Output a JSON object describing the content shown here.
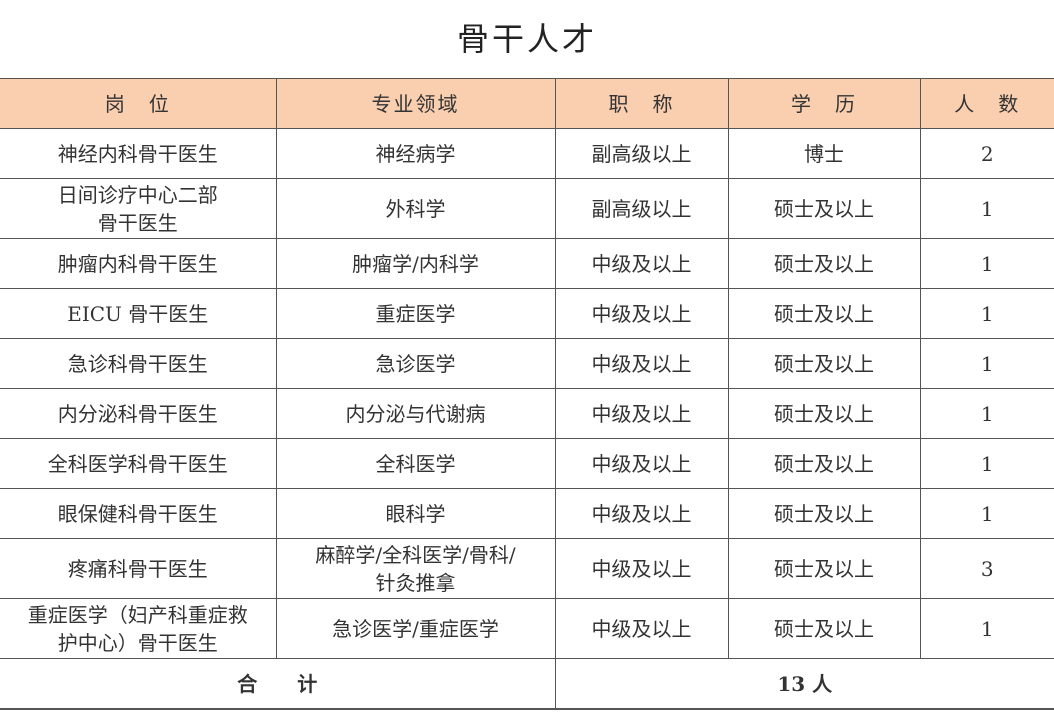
{
  "title": "骨干人才",
  "headers": [
    "岗　位",
    "专业领域",
    "职　称",
    "学　历",
    "人　数"
  ],
  "rows": [
    [
      "神经内科骨干医生",
      "神经病学",
      "副高级以上",
      "博士",
      "2"
    ],
    [
      "日间诊疗中心二部\n骨干医生",
      "外科学",
      "副高级以上",
      "硕士及以上",
      "1"
    ],
    [
      "肿瘤内科骨干医生",
      "肿瘤学/内科学",
      "中级及以上",
      "硕士及以上",
      "1"
    ],
    [
      "EICU 骨干医生",
      "重症医学",
      "中级及以上",
      "硕士及以上",
      "1"
    ],
    [
      "急诊科骨干医生",
      "急诊医学",
      "中级及以上",
      "硕士及以上",
      "1"
    ],
    [
      "内分泌科骨干医生",
      "内分泌与代谢病",
      "中级及以上",
      "硕士及以上",
      "1"
    ],
    [
      "全科医学科骨干医生",
      "全科医学",
      "中级及以上",
      "硕士及以上",
      "1"
    ],
    [
      "眼保健科骨干医生",
      "眼科学",
      "中级及以上",
      "硕士及以上",
      "1"
    ],
    [
      "疼痛科骨干医生",
      "麻醉学/全科医学/骨科/\n针灸推拿",
      "中级及以上",
      "硕士及以上",
      "3"
    ],
    [
      "重症医学（妇产科重症救\n护中心）骨干医生",
      "急诊医学/重症医学",
      "中级及以上",
      "硕士及以上",
      "1"
    ]
  ],
  "total": {
    "label": "合　　计",
    "value": "13 人"
  },
  "colors": {
    "header_bg": "#f9cfb0",
    "border": "#555555"
  }
}
